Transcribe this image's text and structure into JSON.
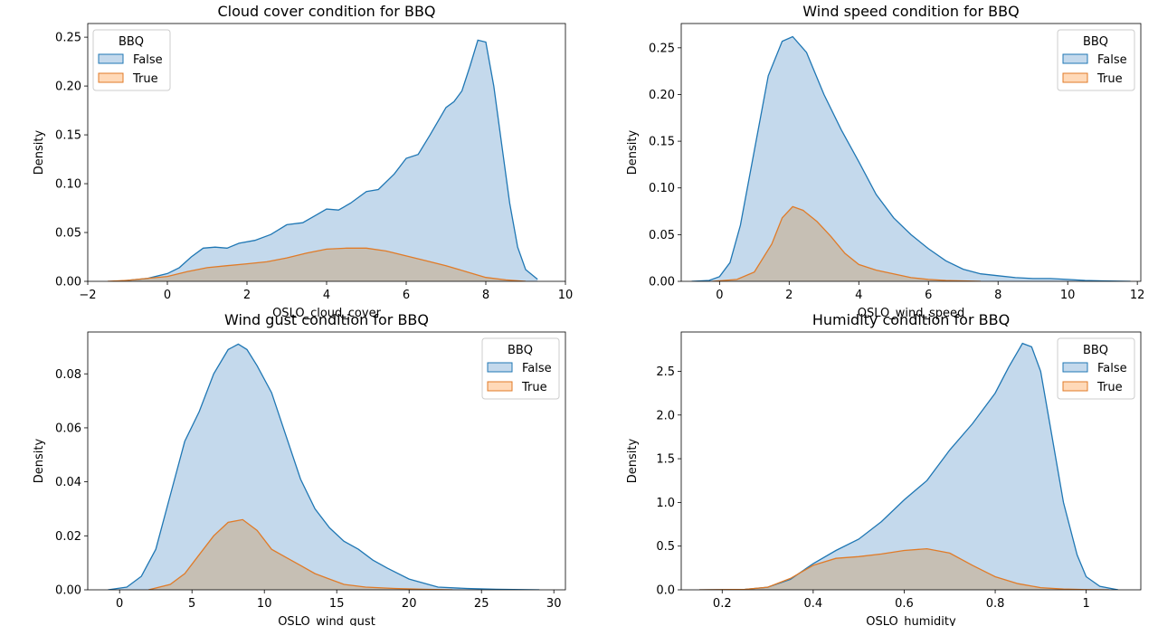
{
  "legend_title": "BBQ",
  "legend_labels": [
    "False",
    "True"
  ],
  "colors": {
    "false_line": "#1f77b4",
    "false_fill": "#c4d9ec",
    "true_line": "#e07b28",
    "true_fill": "#ffd9b8",
    "overlap_fill": "#c6bfb4"
  },
  "chart_data": [
    {
      "type": "area",
      "title": "Cloud cover condition for BBQ",
      "xlabel": "OSLO_cloud_cover",
      "ylabel": "Density",
      "xlim": [
        -2,
        10
      ],
      "ylim": [
        0,
        0.264
      ],
      "xticks": [
        -2,
        0,
        2,
        4,
        6,
        8,
        10
      ],
      "yticks": [
        0.0,
        0.05,
        0.1,
        0.15,
        0.2,
        0.25
      ],
      "ytick_labels": [
        "0.00",
        "0.05",
        "0.10",
        "0.15",
        "0.20",
        "0.25"
      ],
      "legend_position": "top-left",
      "series": [
        {
          "name": "False",
          "x": [
            -1.3,
            -1,
            -0.5,
            0,
            0.3,
            0.6,
            0.9,
            1.2,
            1.5,
            1.8,
            2.2,
            2.6,
            3,
            3.4,
            3.7,
            4,
            4.3,
            4.6,
            5,
            5.3,
            5.7,
            6,
            6.3,
            6.6,
            7,
            7.2,
            7.4,
            7.6,
            7.8,
            8,
            8.2,
            8.4,
            8.6,
            8.8,
            9,
            9.3
          ],
          "y": [
            0,
            0.001,
            0.003,
            0.008,
            0.014,
            0.025,
            0.034,
            0.035,
            0.034,
            0.039,
            0.042,
            0.048,
            0.058,
            0.06,
            0.067,
            0.074,
            0.073,
            0.08,
            0.092,
            0.094,
            0.11,
            0.126,
            0.13,
            0.15,
            0.178,
            0.184,
            0.195,
            0.22,
            0.247,
            0.245,
            0.2,
            0.14,
            0.08,
            0.035,
            0.012,
            0.002
          ]
        },
        {
          "name": "True",
          "x": [
            -1.5,
            -1,
            0,
            0.5,
            1,
            1.5,
            2,
            2.5,
            3,
            3.5,
            4,
            4.5,
            5,
            5.5,
            6,
            6.5,
            7,
            7.5,
            8,
            8.5,
            9
          ],
          "y": [
            0,
            0.001,
            0.005,
            0.01,
            0.014,
            0.016,
            0.018,
            0.02,
            0.024,
            0.029,
            0.033,
            0.034,
            0.034,
            0.031,
            0.026,
            0.021,
            0.016,
            0.01,
            0.004,
            0.0015,
            0
          ]
        }
      ]
    },
    {
      "type": "area",
      "title": "Wind speed condition for BBQ",
      "xlabel": "OSLO_wind_speed",
      "ylabel": "Density",
      "xlim": [
        -1.1,
        12.1
      ],
      "ylim": [
        0,
        0.276
      ],
      "xticks": [
        0,
        2,
        4,
        6,
        8,
        10,
        12
      ],
      "yticks": [
        0.0,
        0.05,
        0.1,
        0.15,
        0.2,
        0.25
      ],
      "ytick_labels": [
        "0.00",
        "0.05",
        "0.10",
        "0.15",
        "0.20",
        "0.25"
      ],
      "legend_position": "top-right",
      "series": [
        {
          "name": "False",
          "x": [
            -0.8,
            -0.3,
            0,
            0.3,
            0.6,
            1,
            1.4,
            1.8,
            2.1,
            2.5,
            3,
            3.5,
            4,
            4.5,
            5,
            5.5,
            6,
            6.5,
            7,
            7.5,
            8,
            8.5,
            9,
            9.5,
            10,
            10.5,
            11,
            11.8
          ],
          "y": [
            0,
            0.001,
            0.005,
            0.02,
            0.06,
            0.14,
            0.22,
            0.257,
            0.262,
            0.245,
            0.2,
            0.162,
            0.128,
            0.093,
            0.068,
            0.05,
            0.035,
            0.022,
            0.013,
            0.008,
            0.006,
            0.004,
            0.003,
            0.003,
            0.002,
            0.001,
            0.0005,
            0
          ]
        },
        {
          "name": "True",
          "x": [
            -0.2,
            0.5,
            1,
            1.5,
            1.8,
            2.1,
            2.4,
            2.8,
            3.2,
            3.6,
            4,
            4.5,
            5,
            5.5,
            6,
            6.5,
            7,
            7.5
          ],
          "y": [
            0,
            0.002,
            0.01,
            0.04,
            0.068,
            0.08,
            0.076,
            0.064,
            0.048,
            0.03,
            0.018,
            0.012,
            0.008,
            0.004,
            0.002,
            0.001,
            0.0005,
            0
          ]
        }
      ]
    },
    {
      "type": "area",
      "title": "Wind gust condition for BBQ",
      "xlabel": "OSLO_wind_gust",
      "ylabel": "Density",
      "xlim": [
        -2.2,
        30.8
      ],
      "ylim": [
        0,
        0.0955
      ],
      "xticks": [
        0,
        5,
        10,
        15,
        20,
        25,
        30
      ],
      "yticks": [
        0.0,
        0.02,
        0.04,
        0.06,
        0.08
      ],
      "ytick_labels": [
        "0.00",
        "0.02",
        "0.04",
        "0.06",
        "0.08"
      ],
      "legend_position": "top-right",
      "series": [
        {
          "name": "False",
          "x": [
            -0.8,
            0.5,
            1.5,
            2.5,
            3.5,
            4.5,
            5.5,
            6.5,
            7.5,
            8.2,
            8.8,
            9.5,
            10.5,
            11.5,
            12.5,
            13.5,
            14.5,
            15.5,
            16.5,
            17.5,
            18.5,
            20,
            22,
            24,
            26,
            29
          ],
          "y": [
            0,
            0.001,
            0.005,
            0.015,
            0.035,
            0.055,
            0.066,
            0.08,
            0.089,
            0.091,
            0.089,
            0.083,
            0.073,
            0.057,
            0.041,
            0.03,
            0.023,
            0.018,
            0.015,
            0.011,
            0.008,
            0.004,
            0.001,
            0.0005,
            0.0002,
            0
          ]
        },
        {
          "name": "True",
          "x": [
            2,
            3.5,
            4.5,
            5.5,
            6.5,
            7.5,
            8.5,
            9.5,
            10.5,
            11.5,
            12.5,
            13.5,
            14.5,
            15.5,
            17,
            19,
            21,
            23
          ],
          "y": [
            0,
            0.002,
            0.006,
            0.013,
            0.02,
            0.025,
            0.026,
            0.022,
            0.015,
            0.012,
            0.009,
            0.006,
            0.004,
            0.002,
            0.001,
            0.0005,
            0.0002,
            0
          ]
        }
      ]
    },
    {
      "type": "area",
      "title": "Humidity condition for BBQ",
      "xlabel": "OSLO_humidity",
      "ylabel": "Density",
      "xlim": [
        0.11,
        1.12
      ],
      "ylim": [
        0,
        2.95
      ],
      "xticks": [
        0.2,
        0.4,
        0.6,
        0.8,
        1.0
      ],
      "yticks": [
        0.0,
        0.5,
        1.0,
        1.5,
        2.0,
        2.5
      ],
      "ytick_labels": [
        "0.0",
        "0.5",
        "1.0",
        "1.5",
        "2.0",
        "2.5"
      ],
      "legend_position": "top-right",
      "series": [
        {
          "name": "False",
          "x": [
            0.15,
            0.25,
            0.3,
            0.35,
            0.4,
            0.45,
            0.5,
            0.55,
            0.6,
            0.65,
            0.7,
            0.75,
            0.8,
            0.83,
            0.86,
            0.88,
            0.9,
            0.92,
            0.95,
            0.98,
            1.0,
            1.03,
            1.07
          ],
          "y": [
            0,
            0.005,
            0.03,
            0.12,
            0.3,
            0.45,
            0.58,
            0.78,
            1.03,
            1.25,
            1.6,
            1.9,
            2.25,
            2.55,
            2.82,
            2.78,
            2.5,
            1.9,
            1.0,
            0.4,
            0.15,
            0.04,
            0
          ]
        },
        {
          "name": "True",
          "x": [
            0.15,
            0.25,
            0.3,
            0.35,
            0.4,
            0.45,
            0.5,
            0.55,
            0.6,
            0.65,
            0.7,
            0.75,
            0.8,
            0.85,
            0.9,
            0.95,
            1.0,
            1.05
          ],
          "y": [
            0,
            0.005,
            0.03,
            0.13,
            0.28,
            0.36,
            0.38,
            0.41,
            0.45,
            0.47,
            0.42,
            0.28,
            0.15,
            0.07,
            0.025,
            0.008,
            0.002,
            0
          ]
        }
      ]
    }
  ]
}
